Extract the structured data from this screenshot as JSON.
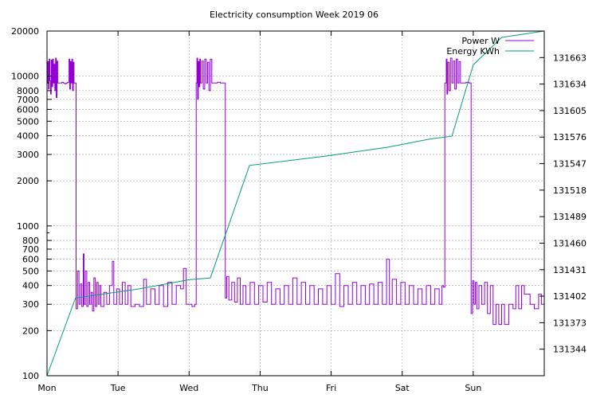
{
  "chart_data": {
    "type": "line",
    "title": "Electricity consumption Week 2019 06",
    "xlabel": "",
    "ylabel": "",
    "x_tick_labels": [
      "Mon",
      "Tue",
      "Wed",
      "Thu",
      "Fri",
      "Sat",
      "Sun"
    ],
    "x_range_days": [
      0,
      7
    ],
    "y_left": {
      "scale": "log",
      "range": [
        100,
        20000
      ],
      "ticks": [
        100,
        200,
        300,
        400,
        500,
        600,
        700,
        800,
        1000,
        2000,
        3000,
        4000,
        5000,
        6000,
        7000,
        8000,
        10000,
        20000
      ],
      "tick_labels": [
        "100",
        "200",
        "300",
        "400",
        "500",
        "600",
        "700",
        "800",
        "1000",
        "2000",
        "3000",
        "4000",
        "5000",
        "6000",
        "7000",
        "8000",
        "10000",
        "20000"
      ]
    },
    "y_right": {
      "scale": "linear",
      "range": [
        131315,
        131692
      ],
      "ticks": [
        131344,
        131373,
        131402,
        131431,
        131460,
        131489,
        131518,
        131547,
        131576,
        131605,
        131634,
        131663
      ]
    },
    "grid": true,
    "legend_position": "top-right",
    "series": [
      {
        "name": "Power W",
        "axis": "left",
        "color": "#9400d3",
        "description_points": [
          [
            0.0,
            9000
          ],
          [
            0.01,
            12500
          ],
          [
            0.02,
            8200
          ],
          [
            0.03,
            13000
          ],
          [
            0.04,
            9300
          ],
          [
            0.05,
            7600
          ],
          [
            0.06,
            12800
          ],
          [
            0.07,
            8500
          ],
          [
            0.08,
            13000
          ],
          [
            0.09,
            9000
          ],
          [
            0.1,
            12000
          ],
          [
            0.11,
            8000
          ],
          [
            0.12,
            13200
          ],
          [
            0.13,
            7200
          ],
          [
            0.14,
            12600
          ],
          [
            0.15,
            9000
          ],
          [
            0.17,
            9000
          ],
          [
            0.19,
            9000
          ],
          [
            0.21,
            9100
          ],
          [
            0.23,
            9000
          ],
          [
            0.25,
            8900
          ],
          [
            0.27,
            9000
          ],
          [
            0.29,
            9100
          ],
          [
            0.31,
            13000
          ],
          [
            0.32,
            8200
          ],
          [
            0.33,
            12500
          ],
          [
            0.34,
            9000
          ],
          [
            0.35,
            13000
          ],
          [
            0.36,
            8000
          ],
          [
            0.37,
            12400
          ],
          [
            0.38,
            9000
          ],
          [
            0.4,
            9000
          ],
          [
            0.41,
            280
          ],
          [
            0.43,
            500
          ],
          [
            0.45,
            300
          ],
          [
            0.47,
            410
          ],
          [
            0.49,
            290
          ],
          [
            0.51,
            650
          ],
          [
            0.52,
            300
          ],
          [
            0.54,
            500
          ],
          [
            0.56,
            290
          ],
          [
            0.58,
            420
          ],
          [
            0.6,
            300
          ],
          [
            0.62,
            360
          ],
          [
            0.64,
            270
          ],
          [
            0.66,
            450
          ],
          [
            0.68,
            290
          ],
          [
            0.7,
            420
          ],
          [
            0.72,
            300
          ],
          [
            0.74,
            400
          ],
          [
            0.76,
            290
          ],
          [
            0.8,
            360
          ],
          [
            0.84,
            300
          ],
          [
            0.88,
            400
          ],
          [
            0.92,
            580
          ],
          [
            0.94,
            300
          ],
          [
            0.98,
            380
          ],
          [
            1.02,
            300
          ],
          [
            1.06,
            420
          ],
          [
            1.1,
            300
          ],
          [
            1.14,
            400
          ],
          [
            1.18,
            290
          ],
          [
            1.24,
            300
          ],
          [
            1.3,
            290
          ],
          [
            1.36,
            440
          ],
          [
            1.4,
            300
          ],
          [
            1.46,
            380
          ],
          [
            1.52,
            300
          ],
          [
            1.58,
            400
          ],
          [
            1.64,
            290
          ],
          [
            1.7,
            420
          ],
          [
            1.76,
            300
          ],
          [
            1.82,
            400
          ],
          [
            1.88,
            380
          ],
          [
            1.92,
            520
          ],
          [
            1.96,
            300
          ],
          [
            2.0,
            300
          ],
          [
            2.04,
            290
          ],
          [
            2.08,
            300
          ],
          [
            2.1,
            9000
          ],
          [
            2.11,
            13200
          ],
          [
            2.12,
            7000
          ],
          [
            2.13,
            12500
          ],
          [
            2.14,
            8500
          ],
          [
            2.15,
            13000
          ],
          [
            2.16,
            9000
          ],
          [
            2.18,
            12600
          ],
          [
            2.2,
            8200
          ],
          [
            2.22,
            13000
          ],
          [
            2.24,
            9000
          ],
          [
            2.26,
            12400
          ],
          [
            2.28,
            8000
          ],
          [
            2.3,
            13000
          ],
          [
            2.32,
            9000
          ],
          [
            2.36,
            9000
          ],
          [
            2.4,
            9100
          ],
          [
            2.44,
            9000
          ],
          [
            2.48,
            9000
          ],
          [
            2.5,
            9000
          ],
          [
            2.51,
            330
          ],
          [
            2.53,
            460
          ],
          [
            2.56,
            320
          ],
          [
            2.6,
            420
          ],
          [
            2.64,
            310
          ],
          [
            2.68,
            450
          ],
          [
            2.72,
            300
          ],
          [
            2.76,
            400
          ],
          [
            2.8,
            300
          ],
          [
            2.86,
            420
          ],
          [
            2.92,
            300
          ],
          [
            2.98,
            400
          ],
          [
            3.04,
            310
          ],
          [
            3.1,
            420
          ],
          [
            3.16,
            300
          ],
          [
            3.22,
            380
          ],
          [
            3.28,
            300
          ],
          [
            3.34,
            400
          ],
          [
            3.4,
            300
          ],
          [
            3.46,
            450
          ],
          [
            3.52,
            300
          ],
          [
            3.58,
            420
          ],
          [
            3.64,
            300
          ],
          [
            3.7,
            400
          ],
          [
            3.76,
            300
          ],
          [
            3.82,
            380
          ],
          [
            3.88,
            300
          ],
          [
            3.94,
            400
          ],
          [
            4.0,
            300
          ],
          [
            4.06,
            480
          ],
          [
            4.12,
            290
          ],
          [
            4.18,
            400
          ],
          [
            4.24,
            300
          ],
          [
            4.3,
            420
          ],
          [
            4.36,
            300
          ],
          [
            4.42,
            400
          ],
          [
            4.48,
            300
          ],
          [
            4.54,
            410
          ],
          [
            4.6,
            300
          ],
          [
            4.66,
            420
          ],
          [
            4.72,
            300
          ],
          [
            4.78,
            600
          ],
          [
            4.82,
            300
          ],
          [
            4.86,
            440
          ],
          [
            4.92,
            300
          ],
          [
            4.98,
            420
          ],
          [
            5.04,
            300
          ],
          [
            5.1,
            400
          ],
          [
            5.16,
            300
          ],
          [
            5.22,
            380
          ],
          [
            5.28,
            300
          ],
          [
            5.34,
            400
          ],
          [
            5.4,
            300
          ],
          [
            5.46,
            380
          ],
          [
            5.52,
            300
          ],
          [
            5.56,
            400
          ],
          [
            5.58,
            390
          ],
          [
            5.6,
            9000
          ],
          [
            5.62,
            13000
          ],
          [
            5.63,
            7600
          ],
          [
            5.64,
            12400
          ],
          [
            5.66,
            8000
          ],
          [
            5.68,
            13200
          ],
          [
            5.7,
            9000
          ],
          [
            5.72,
            12600
          ],
          [
            5.74,
            8200
          ],
          [
            5.76,
            13000
          ],
          [
            5.78,
            9000
          ],
          [
            5.8,
            12500
          ],
          [
            5.82,
            9000
          ],
          [
            5.86,
            9000
          ],
          [
            5.9,
            9100
          ],
          [
            5.94,
            9000
          ],
          [
            5.96,
            9000
          ],
          [
            5.97,
            260
          ],
          [
            5.99,
            430
          ],
          [
            6.01,
            300
          ],
          [
            6.03,
            420
          ],
          [
            6.05,
            280
          ],
          [
            6.08,
            400
          ],
          [
            6.12,
            300
          ],
          [
            6.16,
            420
          ],
          [
            6.2,
            260
          ],
          [
            6.24,
            400
          ],
          [
            6.28,
            220
          ],
          [
            6.32,
            300
          ],
          [
            6.36,
            220
          ],
          [
            6.4,
            300
          ],
          [
            6.44,
            220
          ],
          [
            6.5,
            300
          ],
          [
            6.56,
            280
          ],
          [
            6.6,
            400
          ],
          [
            6.64,
            280
          ],
          [
            6.68,
            400
          ],
          [
            6.72,
            350
          ],
          [
            6.8,
            300
          ],
          [
            6.86,
            280
          ],
          [
            6.92,
            350
          ],
          [
            6.96,
            300
          ],
          [
            7.0,
            300
          ]
        ]
      },
      {
        "name": "Energy KWh",
        "axis": "right",
        "color": "#009e73",
        "points": [
          [
            0.0,
            131315
          ],
          [
            0.4,
            131400
          ],
          [
            1.3,
            131410
          ],
          [
            2.0,
            131420
          ],
          [
            2.3,
            131422
          ],
          [
            2.85,
            131545
          ],
          [
            3.9,
            131555
          ],
          [
            4.8,
            131565
          ],
          [
            5.4,
            131574
          ],
          [
            5.7,
            131577
          ],
          [
            6.0,
            131655
          ],
          [
            6.4,
            131685
          ],
          [
            7.0,
            131692
          ]
        ]
      }
    ]
  }
}
